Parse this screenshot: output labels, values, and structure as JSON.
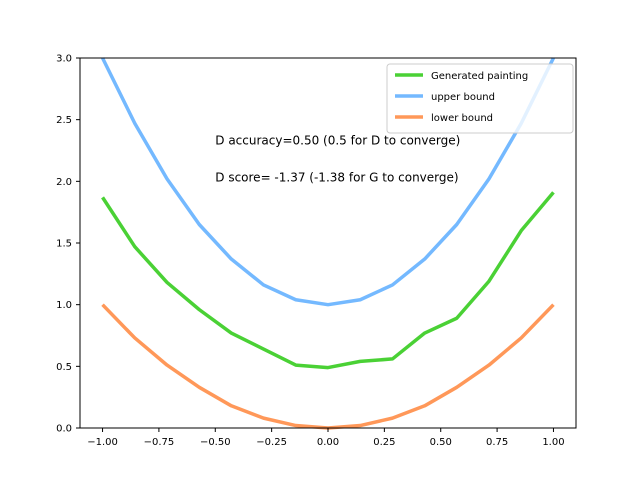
{
  "chart_data": {
    "type": "line",
    "title": "",
    "xlabel": "",
    "ylabel": "",
    "xlim": [
      -1.1,
      1.1
    ],
    "ylim": [
      0,
      3
    ],
    "grid": false,
    "legend_position": "top-right",
    "x": [
      -1.0,
      -0.857,
      -0.714,
      -0.571,
      -0.429,
      -0.286,
      -0.143,
      0.0,
      0.143,
      0.286,
      0.429,
      0.571,
      0.714,
      0.857,
      1.0
    ],
    "x_ticks": [
      -1.0,
      -0.75,
      -0.5,
      -0.25,
      0.0,
      0.25,
      0.5,
      0.75,
      1.0
    ],
    "x_tick_labels": [
      "−1.00",
      "−0.75",
      "−0.50",
      "−0.25",
      "0.00",
      "0.25",
      "0.50",
      "0.75",
      "1.00"
    ],
    "y_ticks": [
      0.0,
      0.5,
      1.0,
      1.5,
      2.0,
      2.5,
      3.0
    ],
    "y_tick_labels": [
      "0.0",
      "0.5",
      "1.0",
      "1.5",
      "2.0",
      "2.5",
      "3.0"
    ],
    "series": [
      {
        "name": "Generated painting",
        "color": "#4ad135",
        "values": [
          1.87,
          1.47,
          1.18,
          0.96,
          0.77,
          0.64,
          0.51,
          0.49,
          0.54,
          0.56,
          0.77,
          0.89,
          1.19,
          1.6,
          1.91
        ]
      },
      {
        "name": "upper bound",
        "color": "#74b9ff",
        "values": [
          3.0,
          2.47,
          2.02,
          1.65,
          1.37,
          1.16,
          1.04,
          1.0,
          1.04,
          1.16,
          1.37,
          1.65,
          2.02,
          2.47,
          3.0
        ]
      },
      {
        "name": "lower bound",
        "color": "#ff9859",
        "values": [
          1.0,
          0.73,
          0.51,
          0.33,
          0.18,
          0.08,
          0.02,
          0.0,
          0.02,
          0.08,
          0.18,
          0.33,
          0.51,
          0.73,
          1.0
        ]
      }
    ],
    "annotations": [
      {
        "text": "D accuracy=0.50 (0.5 for D to converge)",
        "x": -0.5,
        "y": 2.3
      },
      {
        "text": "D score= -1.37 (-1.38 for G to converge)",
        "x": -0.5,
        "y": 2.0
      }
    ]
  }
}
